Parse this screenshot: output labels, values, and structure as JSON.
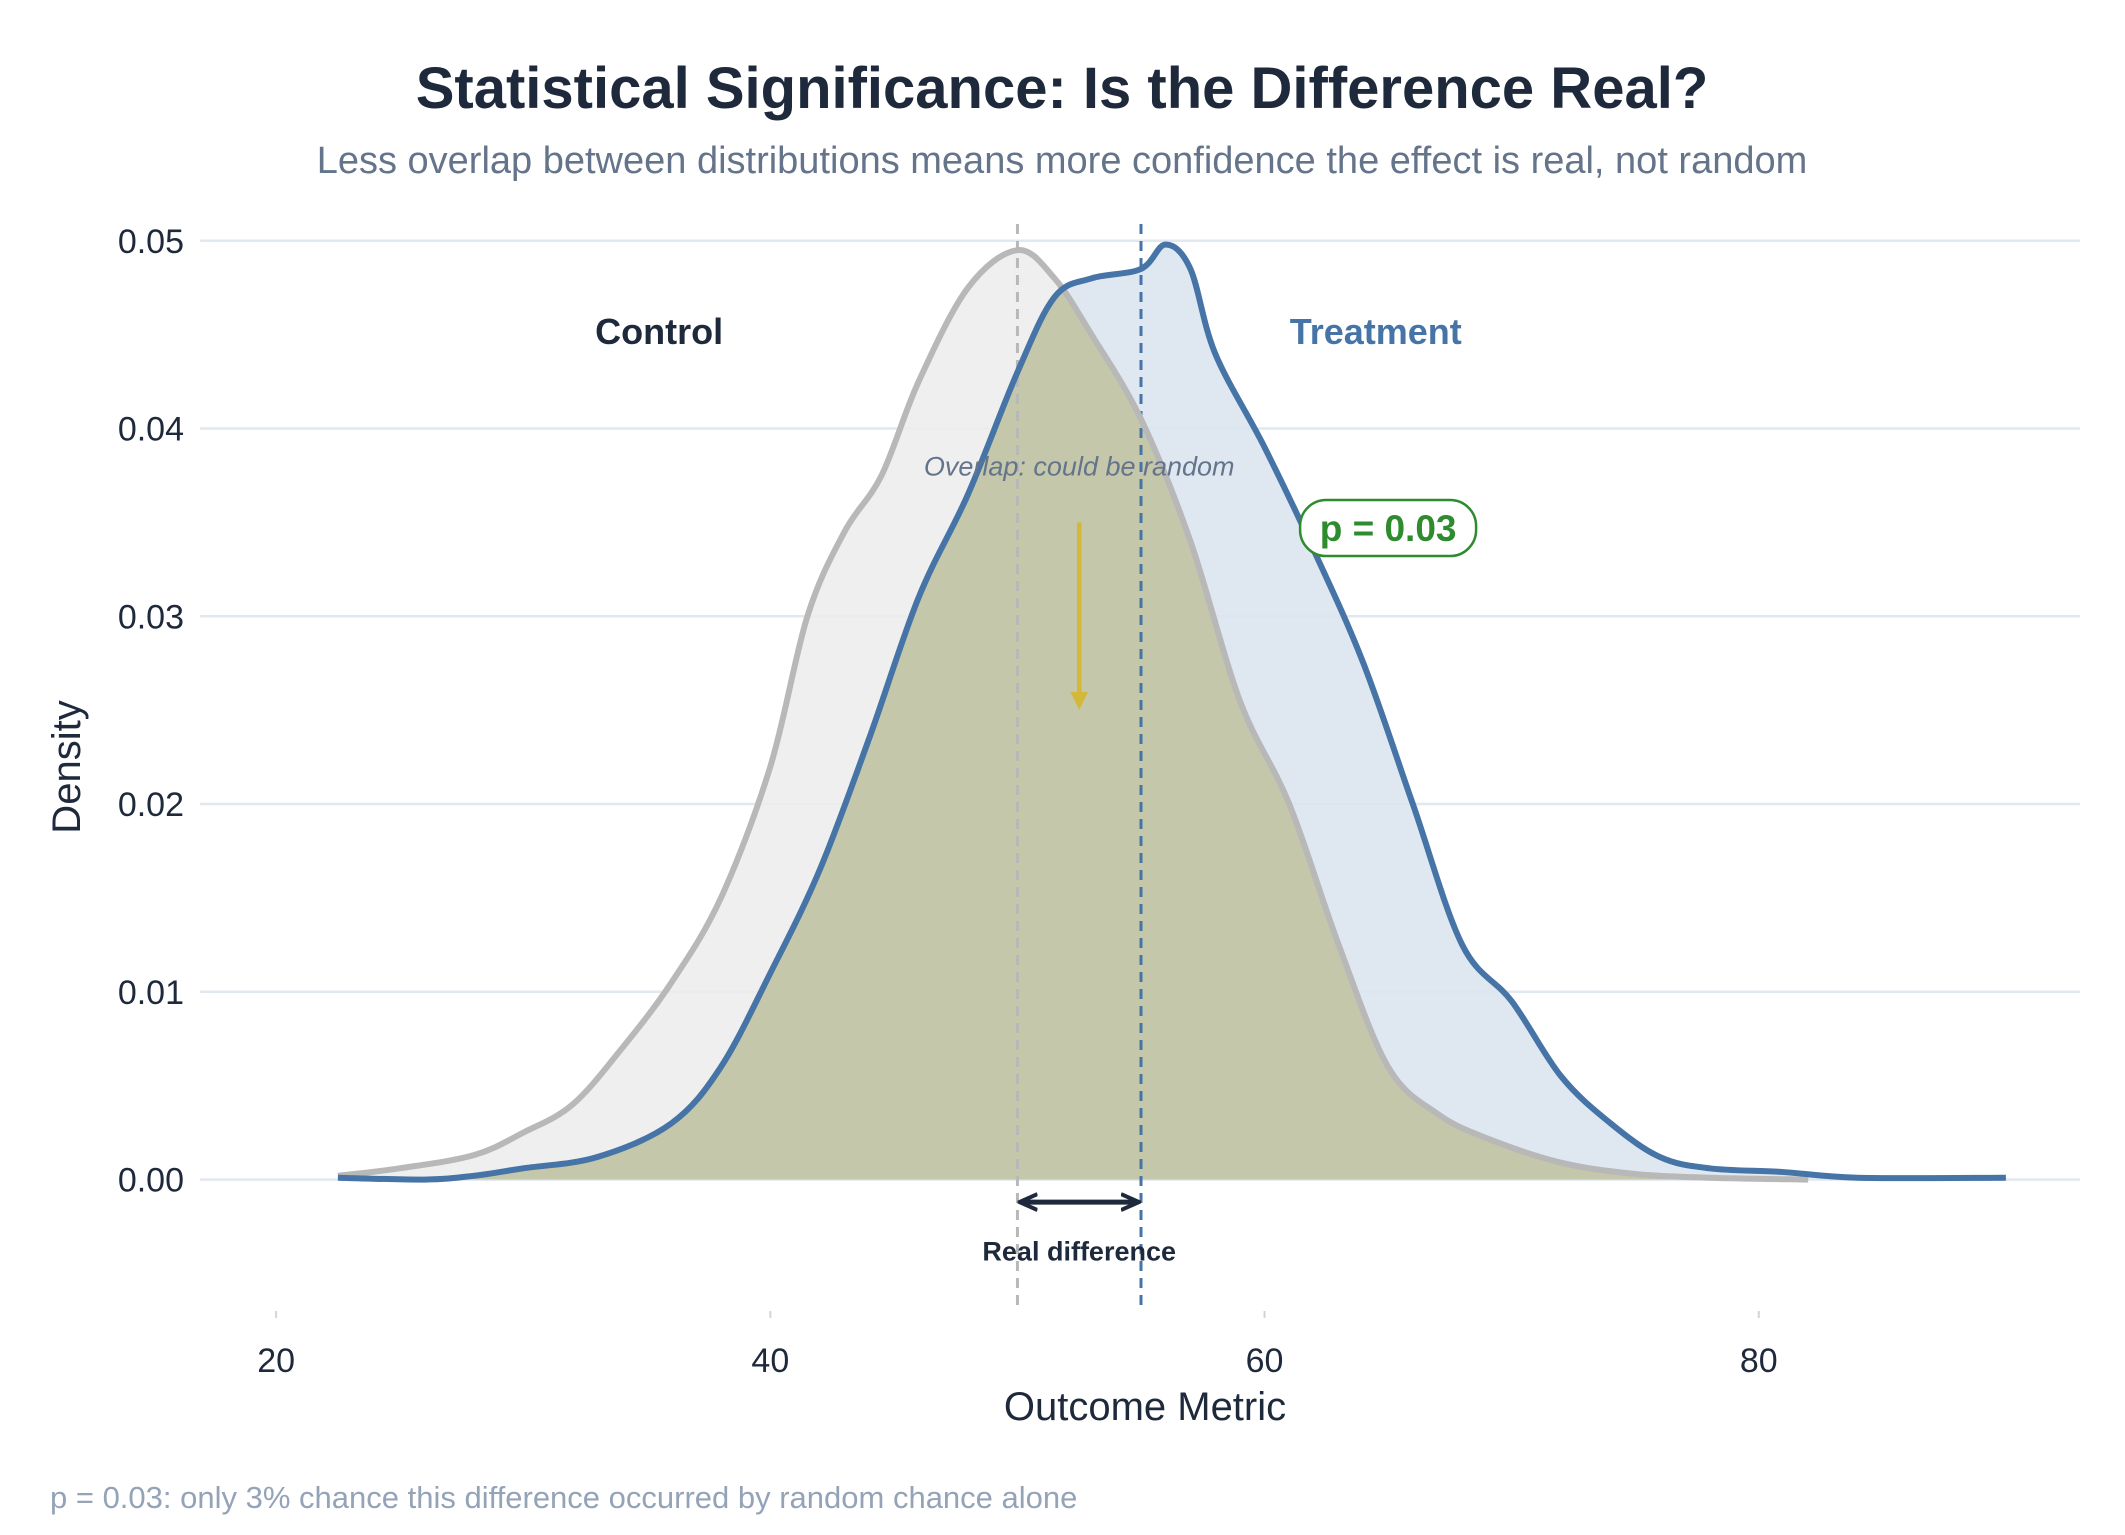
{
  "chart_data": {
    "type": "area",
    "title": "Statistical Significance: Is the Difference Real?",
    "subtitle": "Less overlap between distributions means more confidence the effect is real, not random",
    "xlabel": "Outcome Metric",
    "ylabel": "Density",
    "xlim": [
      17,
      93
    ],
    "ylim": [
      -0.007,
      0.051
    ],
    "xticks": [
      20,
      40,
      60,
      80
    ],
    "xtick_labels": [
      "20",
      "40",
      "60",
      "80"
    ],
    "yticks": [
      0.0,
      0.01,
      0.02,
      0.03,
      0.04,
      0.05
    ],
    "ytick_labels": [
      "0.00",
      "0.01",
      "0.02",
      "0.03",
      "0.04",
      "0.05"
    ],
    "grid": "horizontal",
    "series": [
      {
        "name": "Control",
        "color": "#b8b8b8",
        "fill": "#ececec",
        "mean": 50,
        "points": [
          [
            22.5,
            0.0002
          ],
          [
            25,
            0.0006
          ],
          [
            28,
            0.0013
          ],
          [
            30,
            0.0025
          ],
          [
            32,
            0.004
          ],
          [
            34,
            0.007
          ],
          [
            36,
            0.0105
          ],
          [
            38,
            0.015
          ],
          [
            40,
            0.022
          ],
          [
            41.5,
            0.03
          ],
          [
            43,
            0.0345
          ],
          [
            44.5,
            0.0375
          ],
          [
            46,
            0.0425
          ],
          [
            48,
            0.0475
          ],
          [
            50,
            0.0495
          ],
          [
            51.5,
            0.048
          ],
          [
            53,
            0.045
          ],
          [
            55,
            0.0405
          ],
          [
            57,
            0.034
          ],
          [
            59,
            0.0255
          ],
          [
            61,
            0.02
          ],
          [
            63,
            0.0125
          ],
          [
            65,
            0.006
          ],
          [
            67,
            0.0035
          ],
          [
            69,
            0.0022
          ],
          [
            72,
            0.0009
          ],
          [
            75,
            0.0003
          ],
          [
            78,
            0.0001
          ],
          [
            82,
            0.0
          ]
        ]
      },
      {
        "name": "Treatment",
        "color": "#4674a7",
        "fill": "#dce5ef",
        "mean": 55,
        "points": [
          [
            22.5,
            0.0001
          ],
          [
            26,
            0.0
          ],
          [
            28,
            0.0002
          ],
          [
            30,
            0.0006
          ],
          [
            33,
            0.0012
          ],
          [
            36,
            0.003
          ],
          [
            38,
            0.006
          ],
          [
            40,
            0.011
          ],
          [
            42,
            0.0165
          ],
          [
            44,
            0.0235
          ],
          [
            46,
            0.031
          ],
          [
            48,
            0.0365
          ],
          [
            50,
            0.043
          ],
          [
            51.5,
            0.047
          ],
          [
            53,
            0.048
          ],
          [
            55,
            0.0485
          ],
          [
            56,
            0.0498
          ],
          [
            57,
            0.0485
          ],
          [
            58,
            0.044
          ],
          [
            60,
            0.039
          ],
          [
            62,
            0.0335
          ],
          [
            64,
            0.0275
          ],
          [
            66,
            0.02
          ],
          [
            68,
            0.0125
          ],
          [
            70,
            0.0095
          ],
          [
            72,
            0.0055
          ],
          [
            74,
            0.003
          ],
          [
            76,
            0.0012
          ],
          [
            78,
            0.0006
          ],
          [
            81,
            0.0004
          ],
          [
            84,
            0.0001
          ],
          [
            90,
            0.0001
          ]
        ]
      }
    ],
    "annotations": {
      "control_label": "Control",
      "treatment_label": "Treatment",
      "overlap_label": "Overlap: could be random",
      "p_value_label": "p = 0.03",
      "difference_label": "Real difference",
      "overlap_color": "#d8cc7e",
      "arrow_color": "#d4b83a",
      "p_value_color": "#2e8b2e"
    },
    "caption": "p = 0.03: only 3% chance this difference occurred by random chance alone"
  }
}
